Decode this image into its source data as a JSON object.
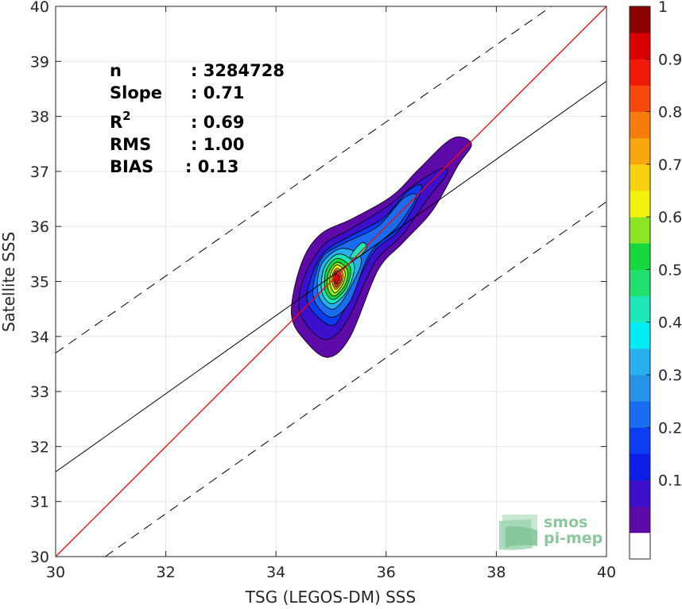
{
  "chart_data": {
    "type": "heatmap",
    "xlabel": "TSG (LEGOS-DM) SSS",
    "ylabel": "Satellite SSS",
    "xlim": [
      30,
      40
    ],
    "ylim": [
      30,
      40
    ],
    "xticks": [
      30,
      32,
      34,
      36,
      38,
      40
    ],
    "yticks": [
      30,
      31,
      32,
      33,
      34,
      35,
      36,
      37,
      38,
      39,
      40
    ],
    "grid": true,
    "stats": {
      "n": {
        "label": "n",
        "value": ": 3284728"
      },
      "slope": {
        "label": "Slope",
        "value": ": 0.71"
      },
      "r2": {
        "label": "R",
        "sup": "2",
        "value": ": 0.69"
      },
      "rms": {
        "label": "RMS",
        "value": ": 1.00"
      },
      "bias": {
        "label": "BIAS",
        "value": ": 0.13"
      }
    },
    "one_to_one_line": {
      "color": "#ff0000",
      "points": [
        [
          30,
          30
        ],
        [
          40,
          40
        ]
      ]
    },
    "regression_line": {
      "slope": 0.71,
      "intercept": 10.24,
      "color": "#000000"
    },
    "offset_lines": [
      {
        "x": [
          30,
          39.0
        ],
        "y": [
          33.7,
          40.0
        ],
        "style": "dashed"
      },
      {
        "x": [
          30.9,
          40
        ],
        "y": [
          30.0,
          36.45
        ],
        "style": "dashed"
      }
    ],
    "density_peak": {
      "x": 35.1,
      "y": 35.05
    },
    "colorbar": {
      "range": [
        0,
        1
      ],
      "ticks": [
        "0.1",
        "0.2",
        "0.3",
        "0.4",
        "0.5",
        "0.6",
        "0.7",
        "0.8",
        "0.9",
        "1"
      ],
      "tick_values": [
        0.1,
        0.2,
        0.3,
        0.4,
        0.5,
        0.6,
        0.7,
        0.8,
        0.9,
        1.0
      ],
      "levels": [
        0.05,
        0.1,
        0.15,
        0.2,
        0.25,
        0.3,
        0.35,
        0.4,
        0.45,
        0.5,
        0.55,
        0.6,
        0.65,
        0.7,
        0.75,
        0.8,
        0.85,
        0.9,
        0.95,
        1.0
      ],
      "colors": [
        "#ffffff",
        "#5d0aa8",
        "#3b0fcc",
        "#0b1de6",
        "#0b3cf2",
        "#1a6cf0",
        "#2593e8",
        "#26b1ee",
        "#00ecf5",
        "#1de6b8",
        "#22e06e",
        "#15d93c",
        "#8ae625",
        "#f2f20d",
        "#f7d010",
        "#f7a60d",
        "#f77c0b",
        "#f7490b",
        "#f01a0a",
        "#d80000",
        "#8c0000"
      ]
    },
    "contours": [
      {
        "level": 0.05,
        "color": "#5d0aa8",
        "points": [
          [
            34.95,
            33.62
          ],
          [
            35.35,
            34.0
          ],
          [
            35.85,
            35.2
          ],
          [
            36.3,
            35.7
          ],
          [
            36.85,
            36.3
          ],
          [
            37.3,
            37.1
          ],
          [
            37.55,
            37.5
          ],
          [
            37.2,
            37.6
          ],
          [
            36.6,
            37.05
          ],
          [
            36.1,
            36.55
          ],
          [
            35.4,
            36.15
          ],
          [
            34.8,
            35.85
          ],
          [
            34.45,
            35.3
          ],
          [
            34.28,
            34.4
          ],
          [
            34.55,
            33.9
          ]
        ]
      },
      {
        "level": 0.1,
        "color": "#3b0fcc",
        "points": [
          [
            34.95,
            33.95
          ],
          [
            35.3,
            34.3
          ],
          [
            35.8,
            35.35
          ],
          [
            36.3,
            35.85
          ],
          [
            36.75,
            36.5
          ],
          [
            37.1,
            36.95
          ],
          [
            37.0,
            37.05
          ],
          [
            36.5,
            36.75
          ],
          [
            36.0,
            36.35
          ],
          [
            35.35,
            35.95
          ],
          [
            34.85,
            35.65
          ],
          [
            34.5,
            35.05
          ],
          [
            34.42,
            34.5
          ],
          [
            34.65,
            34.1
          ]
        ]
      },
      {
        "level": 0.15,
        "color": "#0b3cf2",
        "points": [
          [
            35.0,
            34.2
          ],
          [
            35.25,
            34.5
          ],
          [
            35.75,
            35.5
          ],
          [
            36.25,
            35.95
          ],
          [
            36.65,
            36.7
          ],
          [
            36.4,
            36.65
          ],
          [
            35.95,
            36.15
          ],
          [
            35.3,
            35.8
          ],
          [
            34.85,
            35.5
          ],
          [
            34.6,
            34.95
          ],
          [
            34.6,
            34.55
          ]
        ]
      },
      {
        "level": 0.2,
        "color": "#1a6cf0",
        "points": [
          [
            35.02,
            34.35
          ],
          [
            35.35,
            34.65
          ],
          [
            35.7,
            35.5
          ],
          [
            36.2,
            36.0
          ],
          [
            36.55,
            36.55
          ],
          [
            36.3,
            36.5
          ],
          [
            35.85,
            36.0
          ],
          [
            35.25,
            35.7
          ],
          [
            34.85,
            35.45
          ],
          [
            34.68,
            34.95
          ],
          [
            34.72,
            34.6
          ]
        ]
      },
      {
        "level": 0.3,
        "color": "#26b1ee",
        "points": [
          [
            35.05,
            34.5
          ],
          [
            35.3,
            34.8
          ],
          [
            35.55,
            35.4
          ],
          [
            35.2,
            35.6
          ],
          [
            34.85,
            35.35
          ],
          [
            34.75,
            34.95
          ],
          [
            34.82,
            34.65
          ]
        ]
      },
      {
        "level": 0.4,
        "color": "#1de6b8",
        "points": [
          [
            35.05,
            34.6
          ],
          [
            35.3,
            34.85
          ],
          [
            35.42,
            35.3
          ],
          [
            35.15,
            35.5
          ],
          [
            34.9,
            35.3
          ],
          [
            34.82,
            34.95
          ],
          [
            34.88,
            34.7
          ]
        ]
      },
      {
        "level": 0.5,
        "color": "#15d93c",
        "points": [
          [
            35.07,
            34.68
          ],
          [
            35.28,
            34.9
          ],
          [
            35.35,
            35.25
          ],
          [
            35.12,
            35.42
          ],
          [
            34.93,
            35.25
          ],
          [
            34.88,
            34.95
          ],
          [
            34.93,
            34.75
          ]
        ]
      },
      {
        "level": 0.6,
        "color": "#8ae625",
        "points": [
          [
            35.08,
            34.74
          ],
          [
            35.26,
            34.95
          ],
          [
            35.3,
            35.2
          ],
          [
            35.12,
            35.35
          ],
          [
            34.97,
            35.2
          ],
          [
            34.93,
            34.97
          ],
          [
            34.97,
            34.8
          ]
        ]
      },
      {
        "level": 0.7,
        "color": "#f2f20d",
        "points": [
          [
            35.09,
            34.8
          ],
          [
            35.22,
            34.97
          ],
          [
            35.25,
            35.18
          ],
          [
            35.11,
            35.3
          ],
          [
            35.0,
            35.17
          ],
          [
            34.98,
            34.98
          ],
          [
            35.02,
            34.85
          ]
        ]
      },
      {
        "level": 0.75,
        "color": "#f7a60d",
        "points": [
          [
            35.1,
            34.86
          ],
          [
            35.2,
            35.0
          ],
          [
            35.21,
            35.15
          ],
          [
            35.11,
            35.24
          ],
          [
            35.03,
            35.14
          ],
          [
            35.02,
            34.99
          ],
          [
            35.05,
            34.9
          ]
        ]
      },
      {
        "level": 0.85,
        "color": "#f7490b",
        "points": [
          [
            35.1,
            34.9
          ],
          [
            35.18,
            35.02
          ],
          [
            35.18,
            35.13
          ],
          [
            35.1,
            35.2
          ],
          [
            35.05,
            35.12
          ],
          [
            35.05,
            35.0
          ],
          [
            35.07,
            34.93
          ]
        ]
      },
      {
        "level": 0.95,
        "color": "#d80000",
        "points": [
          [
            35.1,
            34.95
          ],
          [
            35.15,
            35.03
          ],
          [
            35.15,
            35.1
          ],
          [
            35.1,
            35.14
          ],
          [
            35.07,
            35.09
          ],
          [
            35.07,
            35.01
          ]
        ]
      }
    ],
    "secondary_lobe": {
      "color": "#1de6b8",
      "points": [
        [
          35.35,
          35.45
        ],
        [
          35.55,
          35.7
        ],
        [
          35.65,
          35.62
        ],
        [
          35.5,
          35.45
        ]
      ]
    }
  },
  "logo": {
    "line1": "smos",
    "line2": "pi-mep"
  }
}
